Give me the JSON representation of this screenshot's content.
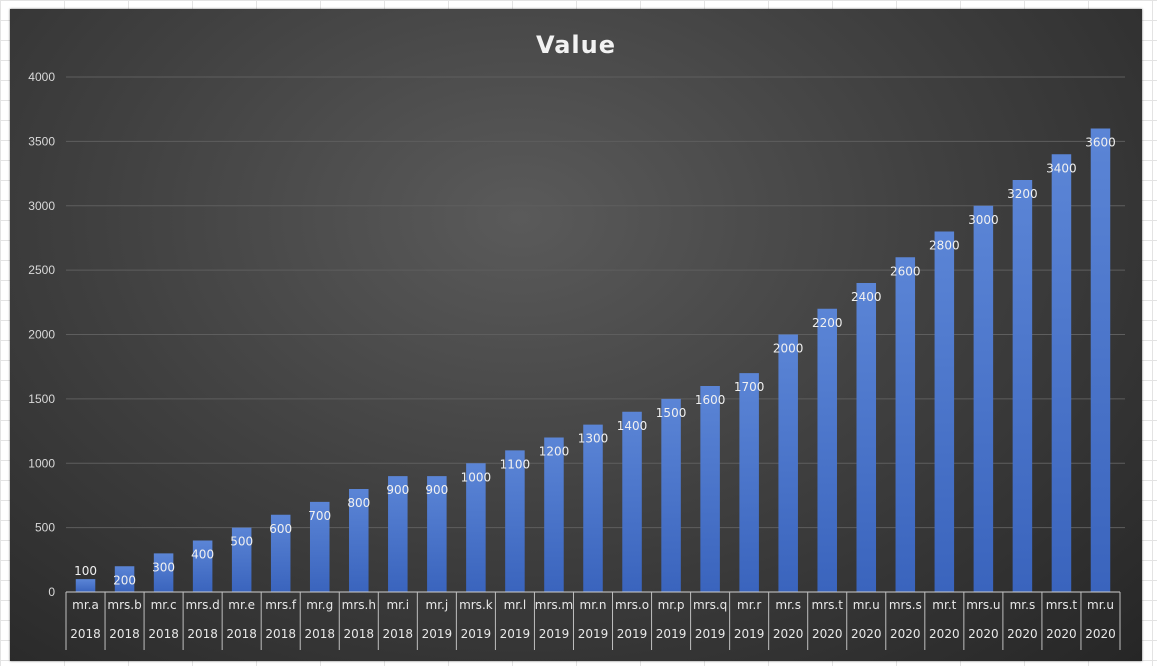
{
  "chart_data": {
    "type": "bar",
    "title": "Value",
    "xlabel": "",
    "ylabel": "",
    "ylim": [
      0,
      4000
    ],
    "yticks": [
      0,
      500,
      1000,
      1500,
      2000,
      2500,
      3000,
      3500,
      4000
    ],
    "grid": true,
    "legend": "none",
    "bar_color": "#4472c4",
    "categories": [
      {
        "name": "mr.a",
        "group": "2018"
      },
      {
        "name": "mrs.b",
        "group": "2018"
      },
      {
        "name": "mr.c",
        "group": "2018"
      },
      {
        "name": "mrs.d",
        "group": "2018"
      },
      {
        "name": "mr.e",
        "group": "2018"
      },
      {
        "name": "mrs.f",
        "group": "2018"
      },
      {
        "name": "mr.g",
        "group": "2018"
      },
      {
        "name": "mrs.h",
        "group": "2018"
      },
      {
        "name": "mr.i",
        "group": "2018"
      },
      {
        "name": "mr.j",
        "group": "2019"
      },
      {
        "name": "mrs.k",
        "group": "2019"
      },
      {
        "name": "mr.l",
        "group": "2019"
      },
      {
        "name": "mrs.m",
        "group": "2019"
      },
      {
        "name": "mr.n",
        "group": "2019"
      },
      {
        "name": "mrs.o",
        "group": "2019"
      },
      {
        "name": "mr.p",
        "group": "2019"
      },
      {
        "name": "mrs.q",
        "group": "2019"
      },
      {
        "name": "mr.r",
        "group": "2019"
      },
      {
        "name": "mr.s",
        "group": "2020"
      },
      {
        "name": "mrs.t",
        "group": "2020"
      },
      {
        "name": "mr.u",
        "group": "2020"
      },
      {
        "name": "mrs.s",
        "group": "2020"
      },
      {
        "name": "mr.t",
        "group": "2020"
      },
      {
        "name": "mrs.u",
        "group": "2020"
      },
      {
        "name": "mr.s",
        "group": "2020"
      },
      {
        "name": "mrs.t",
        "group": "2020"
      },
      {
        "name": "mr.u",
        "group": "2020"
      }
    ],
    "values": [
      100,
      200,
      300,
      400,
      500,
      600,
      700,
      800,
      900,
      900,
      1000,
      1100,
      1200,
      1300,
      1400,
      1500,
      1600,
      1700,
      2000,
      2200,
      2400,
      2600,
      2800,
      3000,
      3200,
      3400,
      3600
    ]
  }
}
